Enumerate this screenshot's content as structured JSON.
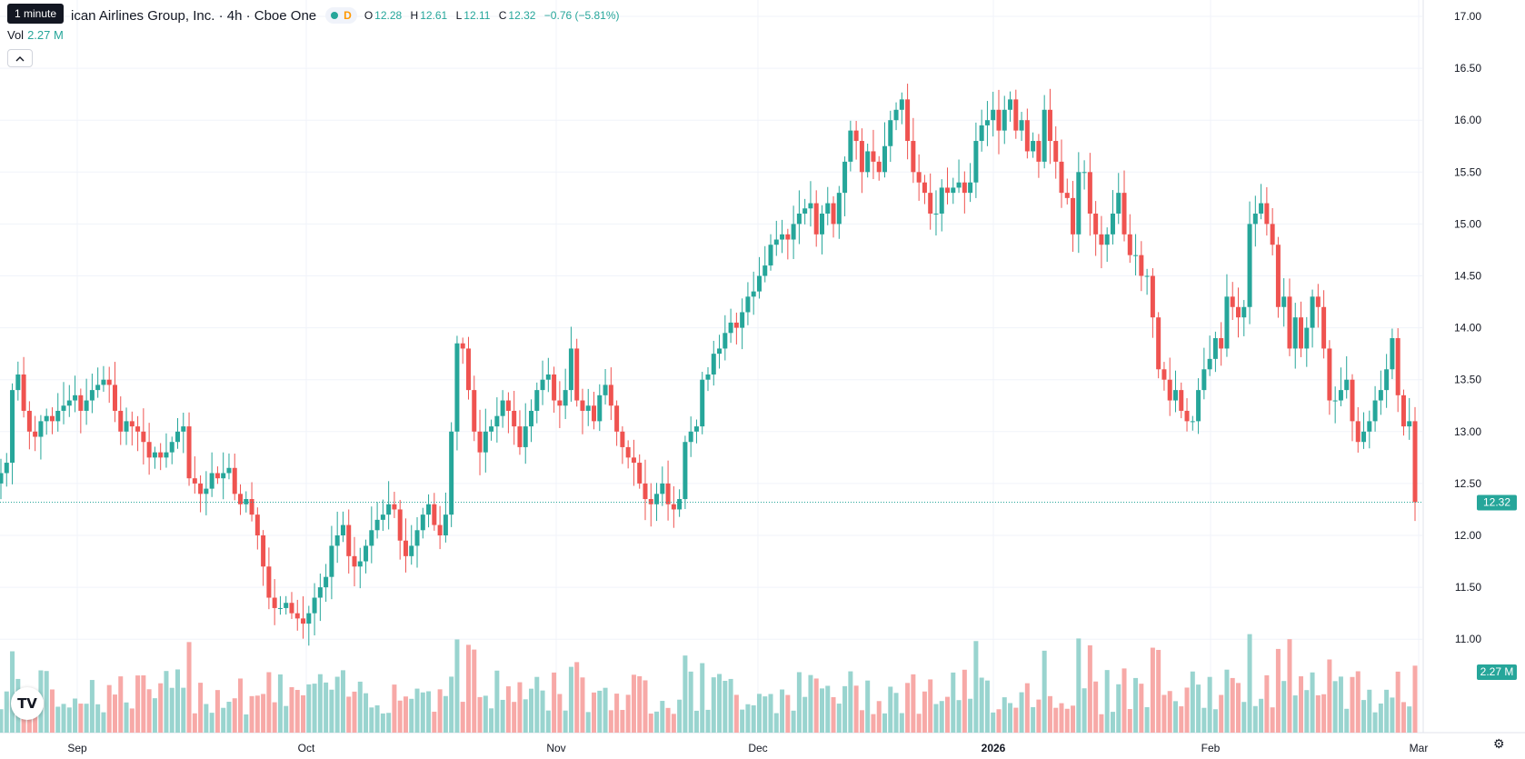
{
  "legend": {
    "tooltip": "1 minute",
    "title": "ican Airlines Group, Inc. · 4h · Cboe One",
    "d_badge": "D",
    "open_label": "O",
    "open": "12.28",
    "high_label": "H",
    "high": "12.61",
    "low_label": "L",
    "low": "12.11",
    "close_label": "C",
    "close": "12.32",
    "change": "−0.76 (−5.81%)",
    "vol_label": "Vol",
    "vol_value": "2.27 M",
    "collapse_icon": "chevron-up-icon"
  },
  "price_badge": "12.32",
  "volume_badge": "2.27 M",
  "colors": {
    "up": "#26a69a",
    "down": "#ef5350",
    "up_vol": "#99d4cf",
    "down_vol": "#f7a9a7",
    "grid": "#f0f3fa"
  },
  "chart_data": {
    "type": "candlestick",
    "timeframe": "4h",
    "y_ticks": [
      "17.00",
      "16.50",
      "16.00",
      "15.50",
      "15.00",
      "14.50",
      "14.00",
      "13.50",
      "13.00",
      "12.50",
      "12.00",
      "11.50",
      "11.00"
    ],
    "ylim": [
      10.5,
      17.05
    ],
    "x_ticks": [
      "Sep",
      "Oct",
      "Nov",
      "Dec",
      "2026",
      "Feb",
      "Mar"
    ],
    "last_price": 12.32,
    "grid": true,
    "series": [
      {
        "name": "price",
        "close": [
          12.6,
          12.7,
          13.4,
          13.55,
          13.2,
          13.0,
          12.95,
          13.1,
          13.15,
          13.1,
          13.2,
          13.25,
          13.3,
          13.35,
          13.2,
          13.3,
          13.4,
          13.45,
          13.5,
          13.45,
          13.2,
          13.0,
          13.1,
          13.05,
          13.0,
          12.9,
          12.75,
          12.8,
          12.75,
          12.8,
          12.9,
          13.0,
          13.05,
          12.55,
          12.5,
          12.4,
          12.45,
          12.6,
          12.55,
          12.6,
          12.65,
          12.4,
          12.3,
          12.35,
          12.2,
          12.0,
          11.7,
          11.4,
          11.3,
          11.3,
          11.35,
          11.25,
          11.2,
          11.15,
          11.25,
          11.4,
          11.5,
          11.6,
          11.9,
          12.0,
          12.1,
          11.8,
          11.7,
          11.75,
          11.9,
          12.05,
          12.15,
          12.2,
          12.3,
          12.25,
          11.95,
          11.8,
          11.9,
          12.05,
          12.2,
          12.3,
          12.1,
          12.0,
          12.2,
          13.0,
          13.85,
          13.8,
          13.4,
          13.0,
          12.8,
          13.0,
          13.05,
          13.15,
          13.3,
          13.2,
          13.05,
          12.85,
          13.05,
          13.2,
          13.4,
          13.5,
          13.55,
          13.3,
          13.25,
          13.4,
          13.8,
          13.3,
          13.2,
          13.25,
          13.1,
          13.35,
          13.45,
          13.25,
          13.0,
          12.85,
          12.75,
          12.7,
          12.5,
          12.35,
          12.3,
          12.4,
          12.5,
          12.3,
          12.25,
          12.35,
          12.9,
          13.0,
          13.05,
          13.5,
          13.55,
          13.75,
          13.8,
          13.95,
          14.05,
          14.0,
          14.15,
          14.3,
          14.35,
          14.5,
          14.6,
          14.8,
          14.85,
          14.9,
          14.85,
          15.0,
          15.1,
          15.15,
          15.2,
          14.9,
          15.1,
          15.2,
          15.0,
          15.3,
          15.6,
          15.9,
          15.8,
          15.5,
          15.7,
          15.6,
          15.5,
          15.75,
          16.0,
          16.1,
          16.2,
          15.8,
          15.5,
          15.4,
          15.3,
          15.1,
          15.1,
          15.35,
          15.3,
          15.35,
          15.4,
          15.3,
          15.4,
          15.8,
          15.95,
          16.0,
          16.1,
          15.9,
          16.1,
          16.2,
          15.9,
          16.0,
          15.7,
          15.8,
          15.6,
          16.1,
          15.8,
          15.6,
          15.3,
          15.25,
          14.9,
          15.5,
          15.5,
          15.1,
          14.9,
          14.8,
          14.9,
          15.1,
          15.3,
          14.9,
          14.7,
          14.7,
          14.5,
          14.5,
          14.1,
          13.6,
          13.5,
          13.3,
          13.4,
          13.2,
          13.1,
          13.1,
          13.4,
          13.6,
          13.7,
          13.9,
          13.8,
          14.3,
          14.2,
          14.1,
          14.2,
          15.0,
          15.1,
          15.2,
          15.0,
          14.8,
          14.2,
          14.3,
          13.8,
          14.1,
          13.8,
          14.0,
          14.3,
          14.2,
          13.8,
          13.3,
          13.3,
          13.4,
          13.5,
          13.1,
          12.9,
          13.0,
          13.1,
          13.3,
          13.4,
          13.6,
          13.9,
          13.35,
          13.05,
          13.1,
          12.32
        ]
      }
    ]
  }
}
